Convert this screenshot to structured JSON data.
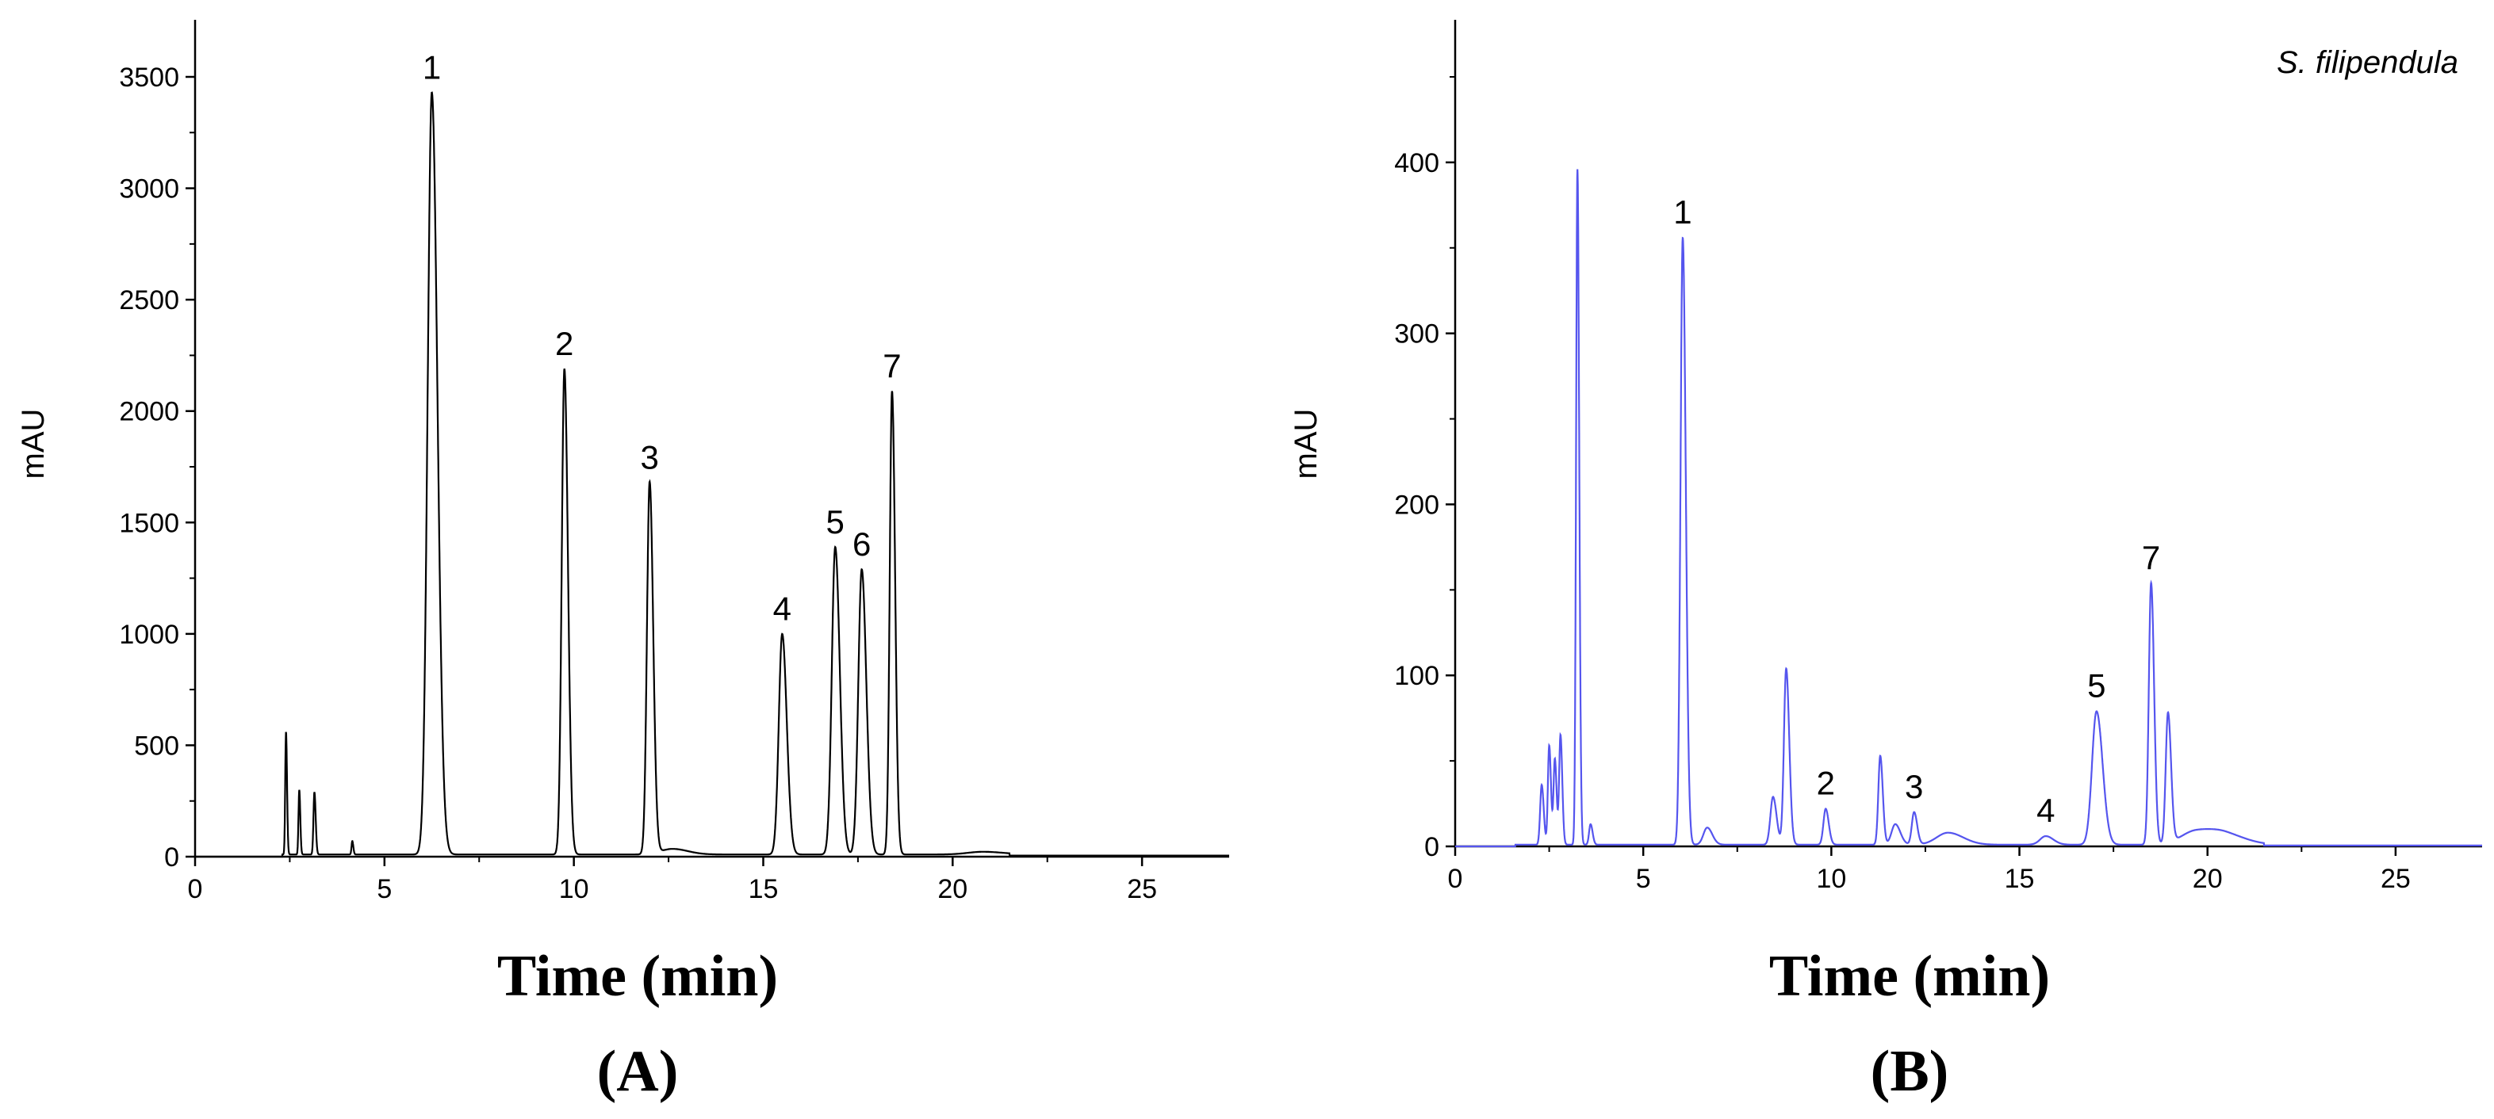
{
  "chart_data": [
    {
      "type": "line",
      "panel_label": "(A)",
      "xlabel": "Time (min)",
      "ylabel": "mAU",
      "xlim": [
        0,
        27.3
      ],
      "ylim": [
        0,
        3500
      ],
      "xticks": [
        0,
        5,
        10,
        15,
        20,
        25
      ],
      "yticks": [
        0,
        500,
        1000,
        1500,
        2000,
        2500,
        3000,
        3500
      ],
      "line_color": "#000000",
      "grid": false,
      "baseline": 10,
      "peaks": [
        {
          "label": "1",
          "x": 6.25,
          "y": 3420,
          "width": 0.11
        },
        {
          "label": "2",
          "x": 9.75,
          "y": 2180,
          "width": 0.07
        },
        {
          "label": "3",
          "x": 12.0,
          "y": 1670,
          "width": 0.07
        },
        {
          "label": "4",
          "x": 15.5,
          "y": 990,
          "width": 0.09
        },
        {
          "label": "5",
          "x": 16.9,
          "y": 1380,
          "width": 0.09
        },
        {
          "label": "6",
          "x": 17.6,
          "y": 1280,
          "width": 0.09
        },
        {
          "label": "7",
          "x": 18.4,
          "y": 2080,
          "width": 0.06
        }
      ],
      "minor_peaks": [
        {
          "x": 2.4,
          "y": 550,
          "width": 0.02
        },
        {
          "x": 2.75,
          "y": 290,
          "width": 0.02
        },
        {
          "x": 3.15,
          "y": 280,
          "width": 0.025
        },
        {
          "x": 4.15,
          "y": 60,
          "width": 0.02
        },
        {
          "x": 12.6,
          "y": 25,
          "width": 0.3
        },
        {
          "x": 20.8,
          "y": 12,
          "width": 0.4
        }
      ]
    },
    {
      "type": "line",
      "panel_label": "(B)",
      "xlabel": "Time (min)",
      "ylabel": "mAU",
      "annotation": "S. filipendula",
      "xlim": [
        0,
        27.3
      ],
      "ylim": [
        0,
        450
      ],
      "xticks": [
        0,
        5,
        10,
        15,
        20,
        25
      ],
      "yticks": [
        0,
        100,
        200,
        300,
        400
      ],
      "line_color": "#5555ee",
      "grid": false,
      "baseline": 1,
      "peaks": [
        {
          "label": "1",
          "x": 6.05,
          "y": 355,
          "width": 0.06
        },
        {
          "label": "2",
          "x": 9.85,
          "y": 21,
          "width": 0.06
        },
        {
          "label": "3",
          "x": 12.2,
          "y": 19,
          "width": 0.06
        },
        {
          "label": "4",
          "x": 15.7,
          "y": 5,
          "width": 0.15
        },
        {
          "label": "5",
          "x": 17.05,
          "y": 78,
          "width": 0.12
        },
        {
          "label": "7",
          "x": 18.5,
          "y": 153,
          "width": 0.06
        }
      ],
      "minor_peaks": [
        {
          "x": 2.3,
          "y": 35,
          "width": 0.04
        },
        {
          "x": 2.5,
          "y": 58,
          "width": 0.035
        },
        {
          "x": 2.65,
          "y": 50,
          "width": 0.035
        },
        {
          "x": 2.8,
          "y": 64,
          "width": 0.035
        },
        {
          "x": 3.25,
          "y": 395,
          "width": 0.035
        },
        {
          "x": 3.6,
          "y": 12,
          "width": 0.04
        },
        {
          "x": 6.7,
          "y": 10,
          "width": 0.1
        },
        {
          "x": 8.45,
          "y": 28,
          "width": 0.07
        },
        {
          "x": 8.8,
          "y": 103,
          "width": 0.06
        },
        {
          "x": 11.3,
          "y": 52,
          "width": 0.05
        },
        {
          "x": 11.7,
          "y": 12,
          "width": 0.1
        },
        {
          "x": 13.1,
          "y": 7,
          "width": 0.3
        },
        {
          "x": 18.95,
          "y": 76,
          "width": 0.06
        },
        {
          "x": 19.7,
          "y": 8,
          "width": 0.4
        },
        {
          "x": 20.5,
          "y": 5,
          "width": 0.4
        }
      ]
    }
  ]
}
